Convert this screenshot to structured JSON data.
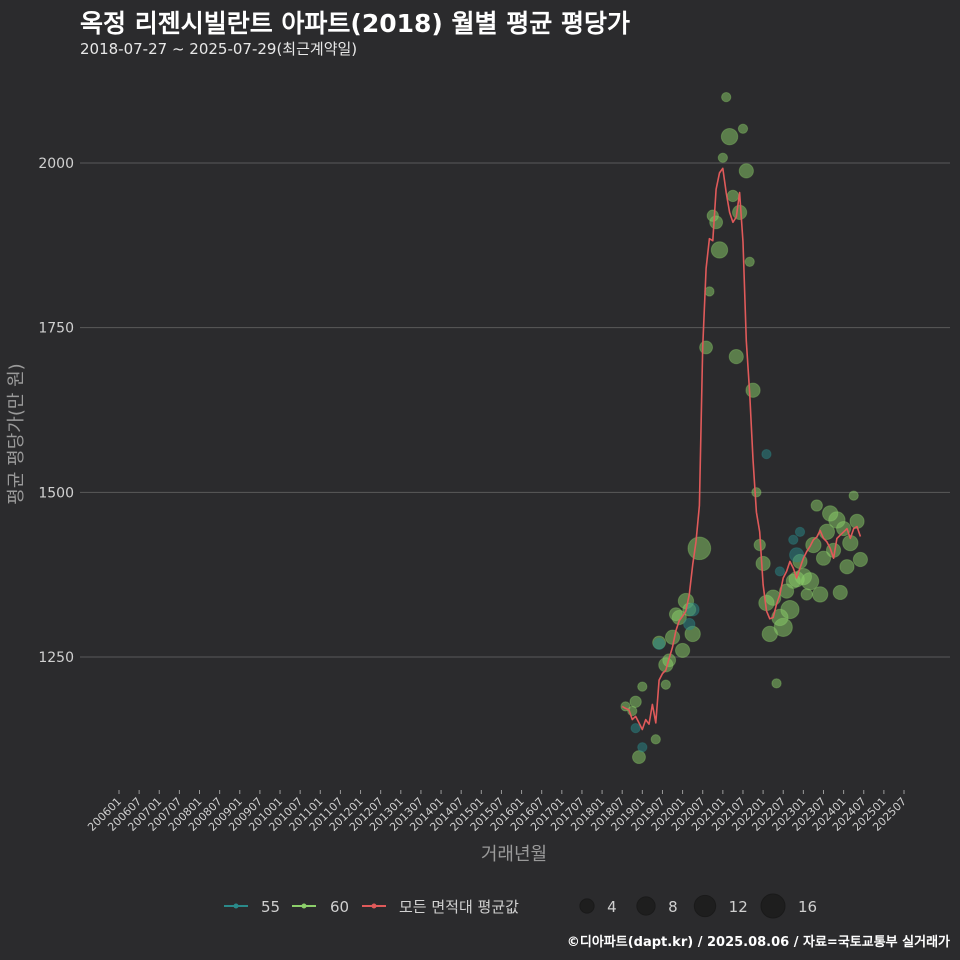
{
  "title": "옥정 리젠시빌란트 아파트(2018) 월별 평균 평당가",
  "subtitle": "2018-07-27 ~ 2025-07-29(최근계약일)",
  "footer": "©디아파트(dapt.kr) / 2025.08.06 / 자료=국토교통부 실거래가",
  "colors": {
    "background": "#2b2b2d",
    "grid": "#5a5a5a",
    "series_55": "#2a8a8a",
    "series_60": "#8ccf6a",
    "avg_line": "#e05a5a",
    "text": "#d0d0d0",
    "axis_title": "#9a9a9a"
  },
  "chart_data": {
    "type": "scatter",
    "title": "옥정 리젠시빌란트 아파트(2018) 월별 평균 평당가",
    "xlabel": "거래년월",
    "ylabel": "평균 평당가(만 원)",
    "ylim": [
      1060,
      2130
    ],
    "yticks": [
      1250,
      1500,
      1750,
      2000
    ],
    "xticks": [
      "200601",
      "200607",
      "200701",
      "200707",
      "200801",
      "200807",
      "200901",
      "200907",
      "201001",
      "201007",
      "201101",
      "201107",
      "201201",
      "201207",
      "201301",
      "201307",
      "201401",
      "201407",
      "201501",
      "201507",
      "201601",
      "201607",
      "201701",
      "201707",
      "201801",
      "201807",
      "201901",
      "201907",
      "202001",
      "202007",
      "202101",
      "202107",
      "202201",
      "202207",
      "202301",
      "202307",
      "202401",
      "202407",
      "202501",
      "202507"
    ],
    "grid": true,
    "legend_position": "bottom",
    "legend": {
      "series_items": [
        {
          "name": "55",
          "color": "#2a8a8a"
        },
        {
          "name": "60",
          "color": "#8ccf6a"
        },
        {
          "name": "모든 면적대 평균값",
          "color": "#e05a5a"
        }
      ],
      "size_items": [
        4,
        8,
        12,
        16
      ]
    },
    "series": [
      {
        "name": "60",
        "color": "#8ccf6a",
        "points": [
          {
            "x": "2018-08",
            "y": 1175,
            "n": 1
          },
          {
            "x": "2018-10",
            "y": 1168,
            "n": 1
          },
          {
            "x": "2018-11",
            "y": 1182,
            "n": 2
          },
          {
            "x": "2018-12",
            "y": 1098,
            "n": 3
          },
          {
            "x": "2019-01",
            "y": 1205,
            "n": 1
          },
          {
            "x": "2019-05",
            "y": 1125,
            "n": 1
          },
          {
            "x": "2019-06",
            "y": 1272,
            "n": 3
          },
          {
            "x": "2019-08",
            "y": 1208,
            "n": 1
          },
          {
            "x": "2019-08",
            "y": 1238,
            "n": 4
          },
          {
            "x": "2019-09",
            "y": 1245,
            "n": 3
          },
          {
            "x": "2019-10",
            "y": 1280,
            "n": 4
          },
          {
            "x": "2019-11",
            "y": 1315,
            "n": 3
          },
          {
            "x": "2019-12",
            "y": 1310,
            "n": 4
          },
          {
            "x": "2020-01",
            "y": 1260,
            "n": 4
          },
          {
            "x": "2020-02",
            "y": 1335,
            "n": 5
          },
          {
            "x": "2020-03",
            "y": 1322,
            "n": 3
          },
          {
            "x": "2020-04",
            "y": 1285,
            "n": 5
          },
          {
            "x": "2020-06",
            "y": 1415,
            "n": 14
          },
          {
            "x": "2020-08",
            "y": 1720,
            "n": 3
          },
          {
            "x": "2020-09",
            "y": 1805,
            "n": 1
          },
          {
            "x": "2020-10",
            "y": 1920,
            "n": 2
          },
          {
            "x": "2020-11",
            "y": 1910,
            "n": 3
          },
          {
            "x": "2020-12",
            "y": 1868,
            "n": 6
          },
          {
            "x": "2021-01",
            "y": 2008,
            "n": 1
          },
          {
            "x": "2021-02",
            "y": 2100,
            "n": 1
          },
          {
            "x": "2021-03",
            "y": 2040,
            "n": 6
          },
          {
            "x": "2021-04",
            "y": 1950,
            "n": 2
          },
          {
            "x": "2021-05",
            "y": 1706,
            "n": 4
          },
          {
            "x": "2021-06",
            "y": 1925,
            "n": 4
          },
          {
            "x": "2021-07",
            "y": 2052,
            "n": 1
          },
          {
            "x": "2021-08",
            "y": 1988,
            "n": 4
          },
          {
            "x": "2021-09",
            "y": 1850,
            "n": 1
          },
          {
            "x": "2021-10",
            "y": 1655,
            "n": 4
          },
          {
            "x": "2021-11",
            "y": 1500,
            "n": 1
          },
          {
            "x": "2021-12",
            "y": 1420,
            "n": 2
          },
          {
            "x": "2022-01",
            "y": 1392,
            "n": 4
          },
          {
            "x": "2022-02",
            "y": 1332,
            "n": 5
          },
          {
            "x": "2022-03",
            "y": 1285,
            "n": 5
          },
          {
            "x": "2022-04",
            "y": 1340,
            "n": 5
          },
          {
            "x": "2022-05",
            "y": 1210,
            "n": 1
          },
          {
            "x": "2022-06",
            "y": 1310,
            "n": 6
          },
          {
            "x": "2022-07",
            "y": 1295,
            "n": 8
          },
          {
            "x": "2022-08",
            "y": 1350,
            "n": 4
          },
          {
            "x": "2022-09",
            "y": 1322,
            "n": 8
          },
          {
            "x": "2022-10",
            "y": 1365,
            "n": 4
          },
          {
            "x": "2022-11",
            "y": 1368,
            "n": 5
          },
          {
            "x": "2022-12",
            "y": 1395,
            "n": 4
          },
          {
            "x": "2023-01",
            "y": 1372,
            "n": 6
          },
          {
            "x": "2023-02",
            "y": 1345,
            "n": 2
          },
          {
            "x": "2023-03",
            "y": 1365,
            "n": 7
          },
          {
            "x": "2023-04",
            "y": 1420,
            "n": 5
          },
          {
            "x": "2023-05",
            "y": 1480,
            "n": 2
          },
          {
            "x": "2023-06",
            "y": 1345,
            "n": 5
          },
          {
            "x": "2023-07",
            "y": 1400,
            "n": 4
          },
          {
            "x": "2023-08",
            "y": 1440,
            "n": 5
          },
          {
            "x": "2023-09",
            "y": 1468,
            "n": 5
          },
          {
            "x": "2023-10",
            "y": 1412,
            "n": 4
          },
          {
            "x": "2023-11",
            "y": 1458,
            "n": 6
          },
          {
            "x": "2023-12",
            "y": 1348,
            "n": 4
          },
          {
            "x": "2024-01",
            "y": 1445,
            "n": 4
          },
          {
            "x": "2024-02",
            "y": 1387,
            "n": 4
          },
          {
            "x": "2024-03",
            "y": 1423,
            "n": 5
          },
          {
            "x": "2024-04",
            "y": 1495,
            "n": 1
          },
          {
            "x": "2024-05",
            "y": 1456,
            "n": 4
          },
          {
            "x": "2024-06",
            "y": 1398,
            "n": 4
          }
        ]
      },
      {
        "name": "55",
        "color": "#2a8a8a",
        "points": [
          {
            "x": "2018-11",
            "y": 1142,
            "n": 1
          },
          {
            "x": "2019-01",
            "y": 1113,
            "n": 1
          },
          {
            "x": "2019-06",
            "y": 1270,
            "n": 2
          },
          {
            "x": "2020-03",
            "y": 1300,
            "n": 2
          },
          {
            "x": "2020-04",
            "y": 1322,
            "n": 3
          },
          {
            "x": "2022-02",
            "y": 1558,
            "n": 1
          },
          {
            "x": "2022-06",
            "y": 1380,
            "n": 1
          },
          {
            "x": "2022-10",
            "y": 1428,
            "n": 1
          },
          {
            "x": "2022-11",
            "y": 1405,
            "n": 4
          },
          {
            "x": "2022-12",
            "y": 1440,
            "n": 1
          }
        ]
      }
    ],
    "average_line": {
      "name": "모든 면적대 평균값",
      "color": "#e05a5a",
      "x": [
        "2018-07",
        "2018-08",
        "2018-09",
        "2018-10",
        "2018-11",
        "2018-12",
        "2019-01",
        "2019-02",
        "2019-03",
        "2019-04",
        "2019-05",
        "2019-06",
        "2019-07",
        "2019-08",
        "2019-09",
        "2019-10",
        "2019-11",
        "2019-12",
        "2020-01",
        "2020-02",
        "2020-03",
        "2020-04",
        "2020-05",
        "2020-06",
        "2020-07",
        "2020-08",
        "2020-09",
        "2020-10",
        "2020-11",
        "2020-12",
        "2021-01",
        "2021-02",
        "2021-03",
        "2021-04",
        "2021-05",
        "2021-06",
        "2021-07",
        "2021-08",
        "2021-09",
        "2021-10",
        "2021-11",
        "2021-12",
        "2022-01",
        "2022-02",
        "2022-03",
        "2022-04",
        "2022-05",
        "2022-06",
        "2022-07",
        "2022-08",
        "2022-09",
        "2022-10",
        "2022-11",
        "2022-12",
        "2023-01",
        "2023-02",
        "2023-03",
        "2023-04",
        "2023-05",
        "2023-06",
        "2023-07",
        "2023-08",
        "2023-09",
        "2023-10",
        "2023-11",
        "2023-12",
        "2024-01",
        "2024-02",
        "2024-03",
        "2024-04",
        "2024-05",
        "2024-06"
      ],
      "values": [
        1175,
        1172,
        1170,
        1155,
        1160,
        1150,
        1140,
        1155,
        1148,
        1178,
        1150,
        1215,
        1225,
        1230,
        1248,
        1265,
        1290,
        1305,
        1312,
        1320,
        1345,
        1390,
        1425,
        1480,
        1720,
        1840,
        1885,
        1882,
        1960,
        1985,
        1992,
        1955,
        1925,
        1910,
        1918,
        1955,
        1880,
        1730,
        1650,
        1550,
        1470,
        1440,
        1360,
        1320,
        1308,
        1310,
        1330,
        1345,
        1370,
        1380,
        1395,
        1385,
        1370,
        1385,
        1400,
        1410,
        1418,
        1428,
        1432,
        1442,
        1430,
        1425,
        1415,
        1400,
        1430,
        1435,
        1440,
        1445,
        1430,
        1445,
        1448,
        1433
      ]
    }
  }
}
